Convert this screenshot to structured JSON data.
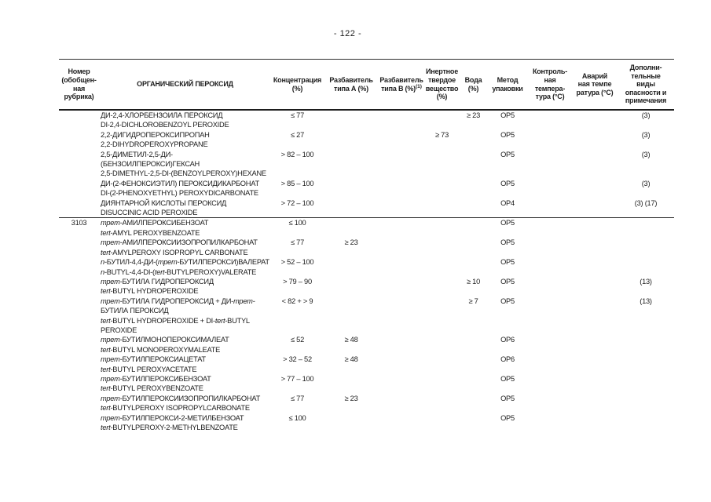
{
  "page": {
    "number_label": "- 122 -"
  },
  "table": {
    "headers": [
      {
        "id": "number",
        "lines": [
          "Номер",
          "(обобщен-",
          "ная",
          "рубрика)"
        ]
      },
      {
        "id": "peroxide",
        "lines": [
          "ОРГАНИЧЕСКИЙ ПЕРОКСИД"
        ]
      },
      {
        "id": "concentration",
        "lines": [
          "Концентрация",
          "(%)"
        ]
      },
      {
        "id": "diluent-a",
        "lines": [
          "Разбавитель",
          "типа А (%)"
        ]
      },
      {
        "id": "diluent-b",
        "lines": [
          "Разбавитель",
          "типа В (%)"
        ],
        "sup": "(1)"
      },
      {
        "id": "inert-solid",
        "lines": [
          "Инертное",
          "твердое",
          "вещество",
          "(%)"
        ]
      },
      {
        "id": "water",
        "lines": [
          "Вода",
          "(%)"
        ]
      },
      {
        "id": "packing-method",
        "lines": [
          "Метод",
          "упаковки"
        ]
      },
      {
        "id": "control-temp",
        "lines": [
          "Контроль-",
          "ная",
          "темпера-",
          "тура (°C)"
        ]
      },
      {
        "id": "emergency-temp",
        "lines": [
          "Аварий",
          "ная темпе",
          "ратура (°C)"
        ]
      },
      {
        "id": "remarks",
        "lines": [
          "Дополни-",
          "тельные",
          "виды",
          "опасности и",
          "примечания"
        ]
      }
    ],
    "rows": [
      {
        "number": "",
        "divider": false,
        "name_lines": [
          [
            {
              "t": "ДИ-2,4-ХЛОРБЕНЗОИЛА ПЕРОКСИД"
            }
          ],
          [
            {
              "t": "DI-2,4-DICHLOROBENZOYL PEROXIDE"
            }
          ]
        ],
        "concentration": "≤ 77",
        "diluent_a": "",
        "diluent_b": "",
        "inert_solid": "",
        "water": "≥ 23",
        "packing_method": "OP5",
        "control_temp": "",
        "emergency_temp": "",
        "remarks": "(3)"
      },
      {
        "number": "",
        "divider": false,
        "name_lines": [
          [
            {
              "t": "2,2-ДИГИДРОПЕРОКСИПРОПАН"
            }
          ],
          [
            {
              "t": "2,2-DIHYDROPEROXYPROPANE"
            }
          ]
        ],
        "concentration": "≤ 27",
        "diluent_a": "",
        "diluent_b": "",
        "inert_solid": "≥ 73",
        "water": "",
        "packing_method": "OP5",
        "control_temp": "",
        "emergency_temp": "",
        "remarks": "(3)"
      },
      {
        "number": "",
        "divider": false,
        "name_lines": [
          [
            {
              "t": "2,5-ДИМЕТИЛ-2,5-ДИ-"
            }
          ],
          [
            {
              "t": "(БЕНЗОИЛПЕРОКСИ)ГЕКСАН"
            }
          ],
          [
            {
              "t": "2,5-DIMETHYL-2,5-DI-(BENZOYLPEROXY)HEXANE"
            }
          ]
        ],
        "concentration": "> 82 – 100",
        "diluent_a": "",
        "diluent_b": "",
        "inert_solid": "",
        "water": "",
        "packing_method": "OP5",
        "control_temp": "",
        "emergency_temp": "",
        "remarks": "(3)"
      },
      {
        "number": "",
        "divider": false,
        "name_lines": [
          [
            {
              "t": "ДИ-(2-ФЕНОКСИЭТИЛ) ПЕРОКСИДИКАРБОНАТ"
            }
          ],
          [
            {
              "t": "DI-(2-PHENOXYETHYL) PEROXYDICARBONATE"
            }
          ]
        ],
        "concentration": "> 85 – 100",
        "diluent_a": "",
        "diluent_b": "",
        "inert_solid": "",
        "water": "",
        "packing_method": "OP5",
        "control_temp": "",
        "emergency_temp": "",
        "remarks": "(3)"
      },
      {
        "number": "",
        "divider": false,
        "name_lines": [
          [
            {
              "t": "ДИЯНТАРНОЙ КИСЛОТЫ ПЕРОКСИД"
            }
          ],
          [
            {
              "t": "DISUCCINIC ACID PEROXIDE"
            }
          ]
        ],
        "concentration": "> 72 – 100",
        "diluent_a": "",
        "diluent_b": "",
        "inert_solid": "",
        "water": "",
        "packing_method": "OP4",
        "control_temp": "",
        "emergency_temp": "",
        "remarks": "(3) (17)"
      },
      {
        "number": "3103",
        "divider": true,
        "name_lines": [
          [
            {
              "t": "трет-",
              "i": true
            },
            {
              "t": "АМИЛПЕРОКСИБЕНЗОАТ"
            }
          ],
          [
            {
              "t": "tert-",
              "i": true
            },
            {
              "t": "AMYL PEROXYBENZOATE"
            }
          ]
        ],
        "concentration": "≤ 100",
        "diluent_a": "",
        "diluent_b": "",
        "inert_solid": "",
        "water": "",
        "packing_method": "OP5",
        "control_temp": "",
        "emergency_temp": "",
        "remarks": ""
      },
      {
        "number": "",
        "divider": false,
        "name_lines": [
          [
            {
              "t": "трет-",
              "i": true
            },
            {
              "t": "АМИЛПЕРОКСИИЗОПРОПИЛКАРБОНАТ"
            }
          ],
          [
            {
              "t": "tert-",
              "i": true
            },
            {
              "t": "AMYLPEROXY ISOPROPYL CARBONATE"
            }
          ]
        ],
        "concentration": "≤ 77",
        "diluent_a": "≥ 23",
        "diluent_b": "",
        "inert_solid": "",
        "water": "",
        "packing_method": "OP5",
        "control_temp": "",
        "emergency_temp": "",
        "remarks": ""
      },
      {
        "number": "",
        "divider": false,
        "name_lines": [
          [
            {
              "t": "n-",
              "i": true
            },
            {
              "t": "БУТИЛ-4,4-ДИ-("
            },
            {
              "t": "трет-",
              "i": true
            },
            {
              "t": "БУТИЛПЕРОКСИ)ВАЛЕРАТ"
            }
          ],
          [
            {
              "t": "n-",
              "i": true
            },
            {
              "t": "BUTYL-4,4-DI-("
            },
            {
              "t": "tert-",
              "i": true
            },
            {
              "t": "BUTYLPEROXY)VALERATE"
            }
          ]
        ],
        "concentration": "> 52 – 100",
        "diluent_a": "",
        "diluent_b": "",
        "inert_solid": "",
        "water": "",
        "packing_method": "OP5",
        "control_temp": "",
        "emergency_temp": "",
        "remarks": ""
      },
      {
        "number": "",
        "divider": false,
        "name_lines": [
          [
            {
              "t": "трет-",
              "i": true
            },
            {
              "t": "БУТИЛА ГИДРОПЕРОКСИД"
            }
          ],
          [
            {
              "t": "tert-",
              "i": true
            },
            {
              "t": "BUTYL HYDROPEROXIDE"
            }
          ]
        ],
        "concentration": "> 79 – 90",
        "diluent_a": "",
        "diluent_b": "",
        "inert_solid": "",
        "water": "≥ 10",
        "packing_method": "OP5",
        "control_temp": "",
        "emergency_temp": "",
        "remarks": "(13)"
      },
      {
        "number": "",
        "divider": false,
        "name_lines": [
          [
            {
              "t": "трет-",
              "i": true
            },
            {
              "t": "БУТИЛА ГИДРОПЕРОКСИД + ДИ-"
            },
            {
              "t": "трет-",
              "i": true
            }
          ],
          [
            {
              "t": "БУТИЛА ПЕРОКСИД"
            }
          ],
          [
            {
              "t": "tert-",
              "i": true
            },
            {
              "t": "BUTYL HYDROPEROXIDE + DI-"
            },
            {
              "t": "tert-",
              "i": true
            },
            {
              "t": "BUTYL"
            }
          ],
          [
            {
              "t": "PEROXIDE"
            }
          ]
        ],
        "concentration": "< 82 + > 9",
        "diluent_a": "",
        "diluent_b": "",
        "inert_solid": "",
        "water": "≥ 7",
        "packing_method": "OP5",
        "control_temp": "",
        "emergency_temp": "",
        "remarks": "(13)"
      },
      {
        "number": "",
        "divider": false,
        "name_lines": [
          [
            {
              "t": "трет-",
              "i": true
            },
            {
              "t": "БУТИЛМОНОПЕРОКСИМАЛЕАТ"
            }
          ],
          [
            {
              "t": "tert-",
              "i": true
            },
            {
              "t": "BUTYL MONOPEROXYMALEATE"
            }
          ]
        ],
        "concentration": "≤ 52",
        "diluent_a": "≥ 48",
        "diluent_b": "",
        "inert_solid": "",
        "water": "",
        "packing_method": "OP6",
        "control_temp": "",
        "emergency_temp": "",
        "remarks": ""
      },
      {
        "number": "",
        "divider": false,
        "name_lines": [
          [
            {
              "t": "трет-",
              "i": true
            },
            {
              "t": "БУТИЛПЕРОКСИАЦЕТАТ"
            }
          ],
          [
            {
              "t": "tert-",
              "i": true
            },
            {
              "t": "BUTYL PEROXYACETATE"
            }
          ]
        ],
        "concentration": "> 32 – 52",
        "diluent_a": "≥ 48",
        "diluent_b": "",
        "inert_solid": "",
        "water": "",
        "packing_method": "OP6",
        "control_temp": "",
        "emergency_temp": "",
        "remarks": ""
      },
      {
        "number": "",
        "divider": false,
        "name_lines": [
          [
            {
              "t": "трет-",
              "i": true
            },
            {
              "t": "БУТИЛПЕРОКСИБЕНЗОАТ"
            }
          ],
          [
            {
              "t": "tert-",
              "i": true
            },
            {
              "t": "BUTYL PEROXYBENZOATE"
            }
          ]
        ],
        "concentration": "> 77 – 100",
        "diluent_a": "",
        "diluent_b": "",
        "inert_solid": "",
        "water": "",
        "packing_method": "OP5",
        "control_temp": "",
        "emergency_temp": "",
        "remarks": ""
      },
      {
        "number": "",
        "divider": false,
        "name_lines": [
          [
            {
              "t": "трет-",
              "i": true
            },
            {
              "t": "БУТИЛПЕРОКСИИЗОПРОПИЛКАРБОНАТ"
            }
          ],
          [
            {
              "t": "tert-",
              "i": true
            },
            {
              "t": "BUTYLPEROXY ISOPROPYLCARBONATE"
            }
          ]
        ],
        "concentration": "≤ 77",
        "diluent_a": "≥ 23",
        "diluent_b": "",
        "inert_solid": "",
        "water": "",
        "packing_method": "OP5",
        "control_temp": "",
        "emergency_temp": "",
        "remarks": ""
      },
      {
        "number": "",
        "divider": false,
        "name_lines": [
          [
            {
              "t": "трет-",
              "i": true
            },
            {
              "t": "БУТИЛПЕРОКСИ-2-МЕТИЛБЕНЗОАТ"
            }
          ],
          [
            {
              "t": "tert-",
              "i": true
            },
            {
              "t": "BUTYLPEROXY-2-METHYLBENZOATE"
            }
          ]
        ],
        "concentration": "≤ 100",
        "diluent_a": "",
        "diluent_b": "",
        "inert_solid": "",
        "water": "",
        "packing_method": "OP5",
        "control_temp": "",
        "emergency_temp": "",
        "remarks": ""
      }
    ]
  }
}
